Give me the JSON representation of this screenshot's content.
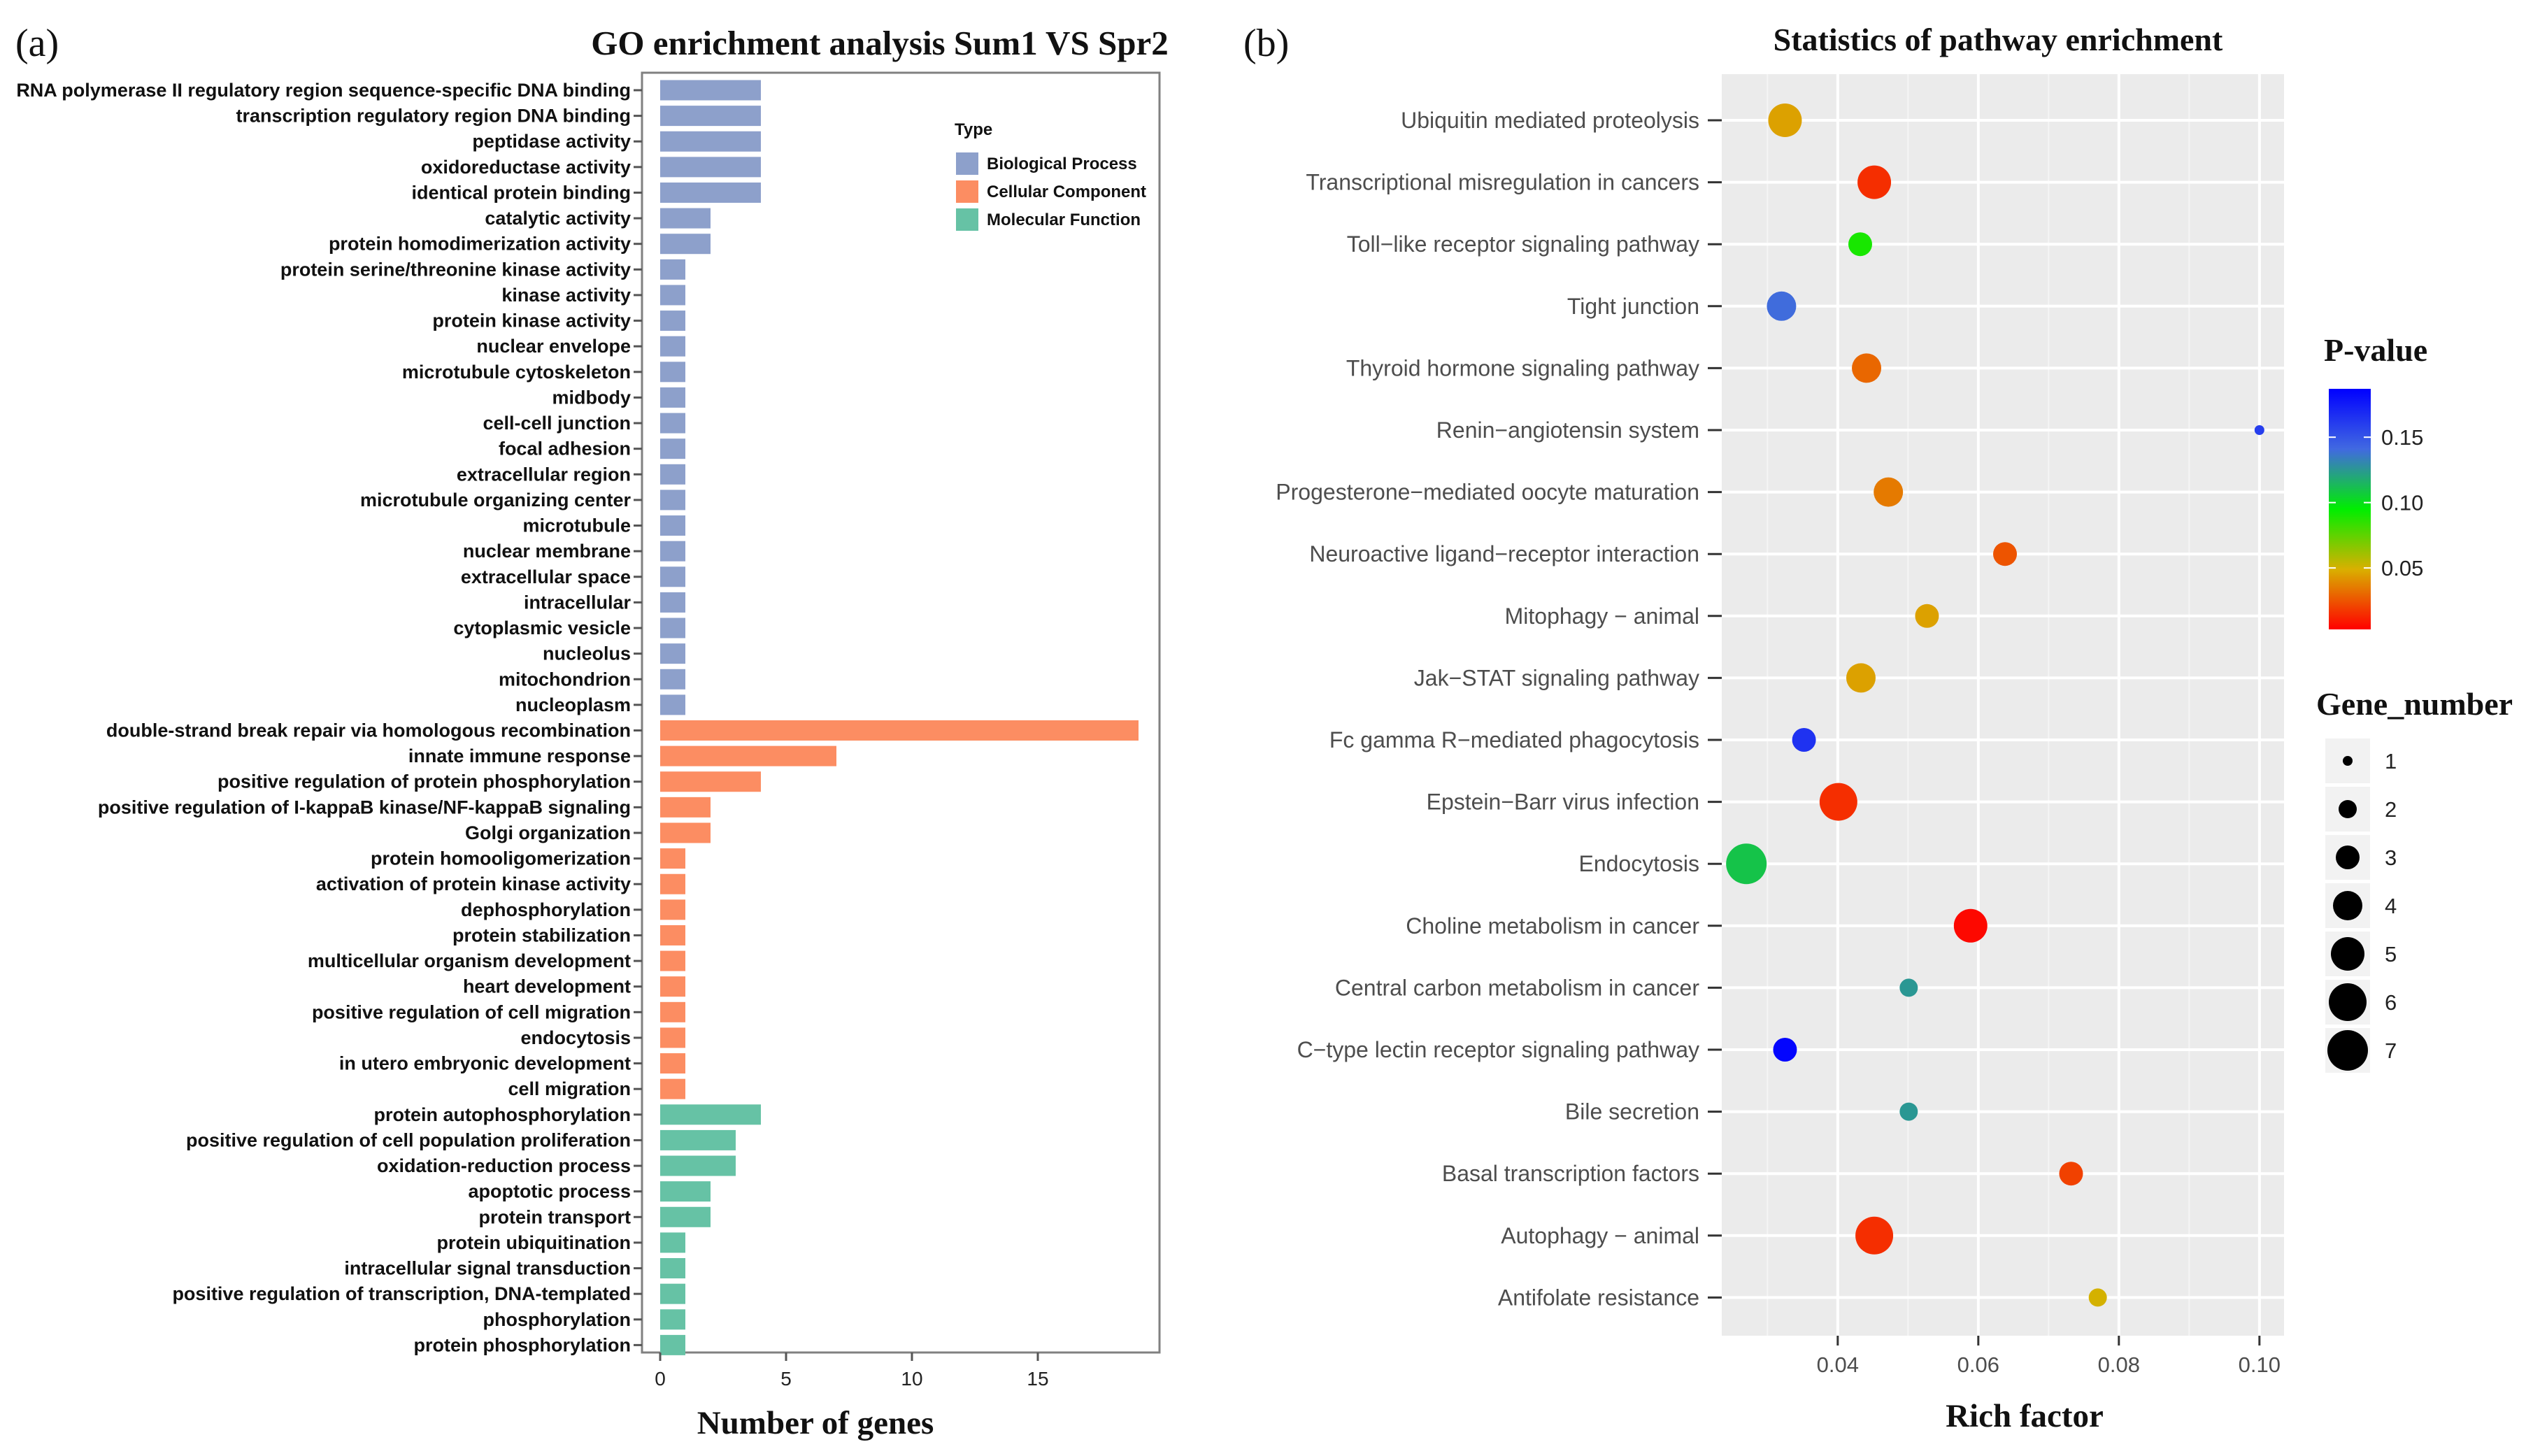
{
  "chart_data": [
    {
      "type": "bar",
      "orientation": "horizontal",
      "panel_label": "(a)",
      "title": "GO enrichment analysis Sum1 VS Spr2",
      "xlabel": "Number of genes",
      "ylabel": "",
      "xlim": [
        0,
        19.5
      ],
      "xticks": [
        0,
        5,
        10,
        15
      ],
      "legend": {
        "title": "Type",
        "position": "top-right",
        "entries": [
          {
            "name": "Biological Process",
            "color": "#8da0cb"
          },
          {
            "name": "Cellular Component",
            "color": "#fc8d62"
          },
          {
            "name": "Molecular Function",
            "color": "#66c2a5"
          }
        ]
      },
      "categories": [
        "RNA polymerase II regulatory region sequence-specific DNA binding",
        "transcription regulatory region DNA binding",
        "peptidase activity",
        "oxidoreductase activity",
        "identical protein binding",
        "catalytic activity",
        "protein homodimerization activity",
        "protein serine/threonine kinase activity",
        "kinase activity",
        "protein kinase activity",
        "nuclear envelope",
        "microtubule cytoskeleton",
        "midbody",
        "cell-cell junction",
        "focal adhesion",
        "extracellular region",
        "microtubule organizing center",
        "microtubule",
        "nuclear membrane",
        "extracellular space",
        "intracellular",
        "cytoplasmic vesicle",
        "nucleolus",
        "mitochondrion",
        "nucleoplasm",
        "double-strand break repair via homologous recombination",
        "innate immune response",
        "positive regulation of protein phosphorylation",
        "positive regulation of I-kappaB kinase/NF-kappaB signaling",
        "Golgi organization",
        "protein homooligomerization",
        "activation of protein kinase activity",
        "dephosphorylation",
        "protein stabilization",
        "multicellular organism development",
        "heart development",
        "positive regulation of cell migration",
        "endocytosis",
        "in utero embryonic development",
        "cell migration",
        "protein autophosphorylation",
        "positive regulation of cell population proliferation",
        "oxidation-reduction process",
        "apoptotic process",
        "protein transport",
        "protein ubiquitination",
        "intracellular signal transduction",
        "positive regulation of transcription, DNA-templated",
        "phosphorylation",
        "protein phosphorylation"
      ],
      "values": [
        4,
        4,
        4,
        4,
        4,
        2,
        2,
        1,
        1,
        1,
        1,
        1,
        1,
        1,
        1,
        1,
        1,
        1,
        1,
        1,
        1,
        1,
        1,
        1,
        1,
        19,
        7,
        4,
        2,
        2,
        1,
        1,
        1,
        1,
        1,
        1,
        1,
        1,
        1,
        1,
        4,
        3,
        3,
        2,
        2,
        1,
        1,
        1,
        1,
        1
      ],
      "types": [
        "Biological Process",
        "Biological Process",
        "Biological Process",
        "Biological Process",
        "Biological Process",
        "Biological Process",
        "Biological Process",
        "Biological Process",
        "Biological Process",
        "Biological Process",
        "Biological Process",
        "Biological Process",
        "Biological Process",
        "Biological Process",
        "Biological Process",
        "Biological Process",
        "Biological Process",
        "Biological Process",
        "Biological Process",
        "Biological Process",
        "Biological Process",
        "Biological Process",
        "Biological Process",
        "Biological Process",
        "Biological Process",
        "Cellular Component",
        "Cellular Component",
        "Cellular Component",
        "Cellular Component",
        "Cellular Component",
        "Cellular Component",
        "Cellular Component",
        "Cellular Component",
        "Cellular Component",
        "Cellular Component",
        "Cellular Component",
        "Cellular Component",
        "Cellular Component",
        "Cellular Component",
        "Cellular Component",
        "Molecular Function",
        "Molecular Function",
        "Molecular Function",
        "Molecular Function",
        "Molecular Function",
        "Molecular Function",
        "Molecular Function",
        "Molecular Function",
        "Molecular Function",
        "Molecular Function"
      ]
    },
    {
      "type": "scatter",
      "panel_label": "(b)",
      "title": "Statistics of pathway enrichment",
      "xlabel": "Rich factor",
      "ylabel": "",
      "xlim": [
        0.0235,
        0.1035
      ],
      "xticks": [
        0.04,
        0.06,
        0.08,
        0.1
      ],
      "xtick_labels": [
        "0.04",
        "0.06",
        "0.08",
        "0.10"
      ],
      "grid": true,
      "pathways": [
        {
          "name": "Ubiquitin mediated proteolysis",
          "rich_factor": 0.0325,
          "p_value": 0.045,
          "genes": 5
        },
        {
          "name": "Transcriptional misregulation in cancers",
          "rich_factor": 0.0452,
          "p_value": 0.015,
          "genes": 5
        },
        {
          "name": "Toll−like receptor signaling pathway",
          "rich_factor": 0.0432,
          "p_value": 0.09,
          "genes": 3
        },
        {
          "name": "Tight junction",
          "rich_factor": 0.032,
          "p_value": 0.14,
          "genes": 4
        },
        {
          "name": "Thyroid hormone signaling pathway",
          "rich_factor": 0.0441,
          "p_value": 0.03,
          "genes": 4
        },
        {
          "name": "Renin−angiotensin system",
          "rich_factor": 0.1,
          "p_value": 0.16,
          "genes": 1
        },
        {
          "name": "Progesterone−mediated oocyte maturation",
          "rich_factor": 0.0472,
          "p_value": 0.035,
          "genes": 4
        },
        {
          "name": "Neuroactive ligand−receptor interaction",
          "rich_factor": 0.0638,
          "p_value": 0.025,
          "genes": 3
        },
        {
          "name": "Mitophagy − animal",
          "rich_factor": 0.0527,
          "p_value": 0.045,
          "genes": 3
        },
        {
          "name": "Jak−STAT signaling pathway",
          "rich_factor": 0.0433,
          "p_value": 0.045,
          "genes": 4
        },
        {
          "name": "Fc gamma R−mediated phagocytosis",
          "rich_factor": 0.0352,
          "p_value": 0.165,
          "genes": 3
        },
        {
          "name": "Epstein−Barr virus infection",
          "rich_factor": 0.0401,
          "p_value": 0.015,
          "genes": 6
        },
        {
          "name": "Endocytosis",
          "rich_factor": 0.027,
          "p_value": 0.11,
          "genes": 7
        },
        {
          "name": "Choline metabolism in cancer",
          "rich_factor": 0.0589,
          "p_value": 0.005,
          "genes": 5
        },
        {
          "name": "Central carbon metabolism in cancer",
          "rich_factor": 0.0501,
          "p_value": 0.125,
          "genes": 2
        },
        {
          "name": "C−type lectin receptor signaling pathway",
          "rich_factor": 0.0325,
          "p_value": 0.185,
          "genes": 3
        },
        {
          "name": "Bile secretion",
          "rich_factor": 0.0501,
          "p_value": 0.125,
          "genes": 2
        },
        {
          "name": "Basal transcription factors",
          "rich_factor": 0.0732,
          "p_value": 0.02,
          "genes": 3
        },
        {
          "name": "Autophagy − animal",
          "rich_factor": 0.0452,
          "p_value": 0.015,
          "genes": 6
        },
        {
          "name": "Antifolate resistance",
          "rich_factor": 0.077,
          "p_value": 0.05,
          "genes": 2
        }
      ],
      "color_legend": {
        "title": "P-value",
        "ticks": [
          "0.15",
          "0.10",
          "0.05"
        ],
        "tick_values": [
          0.15,
          0.1,
          0.05
        ],
        "range": [
          0.003,
          0.187
        ],
        "colors_low_to_high": [
          "#ff0000",
          "#d9b000",
          "#00ee00",
          "#4169e1",
          "#0000ff"
        ]
      },
      "size_legend": {
        "title": "Gene_number",
        "values": [
          "1",
          "2",
          "3",
          "4",
          "5",
          "6",
          "7"
        ]
      }
    }
  ]
}
